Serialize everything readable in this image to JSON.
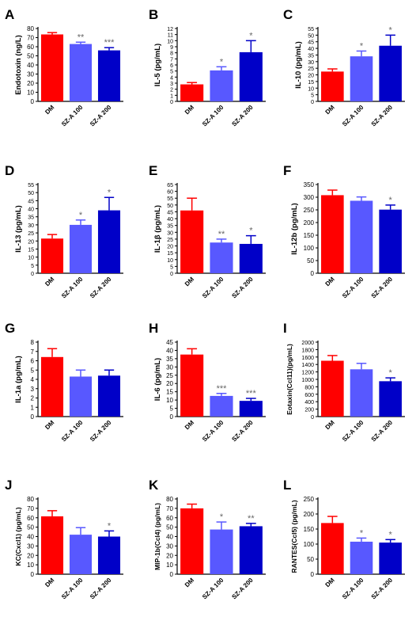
{
  "colors": {
    "DM": "#ff0000",
    "SZ-A 100": "#5858ff",
    "SZ-A 200": "#0000c8",
    "axis": "#000000",
    "sig": "#666666"
  },
  "categories": [
    "DM",
    "SZ-A 100",
    "SZ-A 200"
  ],
  "chart_data": [
    {
      "type": "bar",
      "panel": "A",
      "ylabel": "Endotoxin (ng/L)",
      "ylim": [
        0,
        80
      ],
      "yticks": [
        0,
        10,
        20,
        30,
        40,
        50,
        60,
        70,
        80
      ],
      "categories": [
        "DM",
        "SZ-A 100",
        "SZ-A 200"
      ],
      "values": [
        73.5,
        63,
        56
      ],
      "errors": [
        2,
        2,
        3
      ],
      "sig": [
        "",
        "**",
        "***"
      ]
    },
    {
      "type": "bar",
      "panel": "B",
      "ylabel": "IL-5 (pg/mL)",
      "ylim": [
        0,
        12
      ],
      "yticks": [
        0,
        1,
        2,
        3,
        4,
        5,
        6,
        7,
        8,
        9,
        10,
        11,
        12
      ],
      "categories": [
        "DM",
        "SZ-A 100",
        "SZ-A 200"
      ],
      "values": [
        2.8,
        5.1,
        8.1
      ],
      "errors": [
        0.3,
        0.6,
        1.9
      ],
      "sig": [
        "",
        "*",
        "*"
      ]
    },
    {
      "type": "bar",
      "panel": "C",
      "ylabel": "IL-10 (pg/mL)",
      "ylim": [
        0,
        55
      ],
      "yticks": [
        0,
        5,
        10,
        15,
        20,
        25,
        30,
        35,
        40,
        45,
        50,
        55
      ],
      "categories": [
        "DM",
        "SZ-A 100",
        "SZ-A 200"
      ],
      "values": [
        22.5,
        34,
        42
      ],
      "errors": [
        2,
        4,
        8
      ],
      "sig": [
        "",
        "*",
        "*"
      ]
    },
    {
      "type": "bar",
      "panel": "D",
      "ylabel": "IL-13 (pg/mL)",
      "ylim": [
        0,
        55
      ],
      "yticks": [
        0,
        5,
        10,
        15,
        20,
        25,
        30,
        35,
        40,
        45,
        50,
        55
      ],
      "categories": [
        "DM",
        "SZ-A 100",
        "SZ-A 200"
      ],
      "values": [
        21.5,
        30,
        39
      ],
      "errors": [
        2.5,
        3,
        8
      ],
      "sig": [
        "",
        "*",
        "*"
      ]
    },
    {
      "type": "bar",
      "panel": "E",
      "ylabel": "IL-1β (pg/mL)",
      "ylim": [
        0,
        65
      ],
      "yticks": [
        0,
        5,
        10,
        15,
        20,
        25,
        30,
        35,
        40,
        45,
        50,
        55,
        60,
        65
      ],
      "categories": [
        "DM",
        "SZ-A 100",
        "SZ-A 200"
      ],
      "values": [
        46,
        22.5,
        21.5
      ],
      "errors": [
        9,
        2.5,
        6
      ],
      "sig": [
        "",
        "**",
        "*"
      ]
    },
    {
      "type": "bar",
      "panel": "F",
      "ylabel": "IL-12b (pg/mL)",
      "ylim": [
        0,
        350
      ],
      "yticks": [
        0,
        50,
        100,
        150,
        200,
        250,
        300,
        350
      ],
      "categories": [
        "DM",
        "SZ-A 100",
        "SZ-A 200"
      ],
      "values": [
        308,
        286,
        251
      ],
      "errors": [
        20,
        15,
        18
      ],
      "sig": [
        "",
        "",
        "*"
      ]
    },
    {
      "type": "bar",
      "panel": "G",
      "ylabel": "IL-1a (pg/mL)",
      "ylim": [
        0,
        8
      ],
      "yticks": [
        0,
        1,
        2,
        3,
        4,
        5,
        6,
        7,
        8
      ],
      "categories": [
        "DM",
        "SZ-A 100",
        "SZ-A 200"
      ],
      "values": [
        6.4,
        4.3,
        4.4
      ],
      "errors": [
        0.9,
        0.7,
        0.6
      ],
      "sig": [
        "",
        "",
        ""
      ]
    },
    {
      "type": "bar",
      "panel": "H",
      "ylabel": "IL-6 (pg/mL)",
      "ylim": [
        0,
        45
      ],
      "yticks": [
        0,
        5,
        10,
        15,
        20,
        25,
        30,
        35,
        40,
        45
      ],
      "categories": [
        "DM",
        "SZ-A 100",
        "SZ-A 200"
      ],
      "values": [
        37.5,
        12.5,
        9.5
      ],
      "errors": [
        3.5,
        1.5,
        1.5
      ],
      "sig": [
        "",
        "***",
        "***"
      ]
    },
    {
      "type": "bar",
      "panel": "I",
      "ylabel": "Eotaxin(Ccl11)(pg/mL)",
      "ylim": [
        0,
        2000
      ],
      "yticks": [
        0,
        200,
        400,
        600,
        800,
        1000,
        1200,
        1400,
        1600,
        1800,
        2000
      ],
      "categories": [
        "DM",
        "SZ-A 100",
        "SZ-A 200"
      ],
      "values": [
        1500,
        1270,
        950
      ],
      "errors": [
        140,
        160,
        90
      ],
      "sig": [
        "",
        "",
        "*"
      ]
    },
    {
      "type": "bar",
      "panel": "J",
      "ylabel": "KC(Cxcl1) (pg/mL)",
      "ylim": [
        0,
        80
      ],
      "yticks": [
        0,
        10,
        20,
        30,
        40,
        50,
        60,
        70,
        80
      ],
      "categories": [
        "DM",
        "SZ-A 100",
        "SZ-A 200"
      ],
      "values": [
        61.5,
        42,
        40
      ],
      "errors": [
        6,
        7.5,
        6
      ],
      "sig": [
        "",
        "",
        "*"
      ]
    },
    {
      "type": "bar",
      "panel": "K",
      "ylabel": "MIP-1b(Ccl4) (pg/mL)",
      "ylim": [
        0,
        80
      ],
      "yticks": [
        0,
        10,
        20,
        30,
        40,
        50,
        60,
        70,
        80
      ],
      "categories": [
        "DM",
        "SZ-A 100",
        "SZ-A 200"
      ],
      "values": [
        70,
        47.5,
        51
      ],
      "errors": [
        4.5,
        8,
        3
      ],
      "sig": [
        "",
        "*",
        "**"
      ]
    },
    {
      "type": "bar",
      "panel": "L",
      "ylabel": "RANTES(Ccl5) (pg/mL)",
      "ylim": [
        0,
        250
      ],
      "yticks": [
        0,
        50,
        100,
        150,
        200,
        250
      ],
      "categories": [
        "DM",
        "SZ-A 100",
        "SZ-A 200"
      ],
      "values": [
        170,
        108,
        105
      ],
      "errors": [
        22,
        12,
        10
      ],
      "sig": [
        "",
        "*",
        "*"
      ]
    }
  ]
}
